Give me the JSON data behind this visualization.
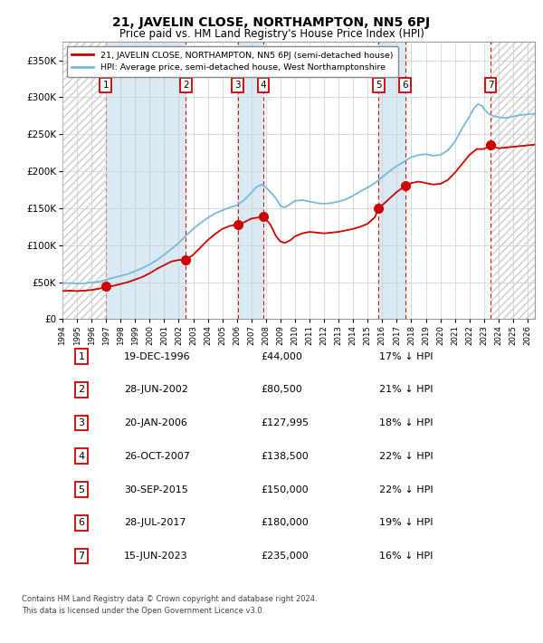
{
  "title": "21, JAVELIN CLOSE, NORTHAMPTON, NN5 6PJ",
  "subtitle": "Price paid vs. HM Land Registry's House Price Index (HPI)",
  "transactions": [
    {
      "num": 1,
      "date_year": 1996.969,
      "price": 44000
    },
    {
      "num": 2,
      "date_year": 2002.49,
      "price": 80500
    },
    {
      "num": 3,
      "date_year": 2006.055,
      "price": 127995
    },
    {
      "num": 4,
      "date_year": 2007.819,
      "price": 138500
    },
    {
      "num": 5,
      "date_year": 2015.747,
      "price": 150000
    },
    {
      "num": 6,
      "date_year": 2017.572,
      "price": 180000
    },
    {
      "num": 7,
      "date_year": 2023.452,
      "price": 235000
    }
  ],
  "table_rows": [
    {
      "num": 1,
      "date_str": "19-DEC-1996",
      "price_str": "£44,000",
      "pct_str": "17% ↓ HPI"
    },
    {
      "num": 2,
      "date_str": "28-JUN-2002",
      "price_str": "£80,500",
      "pct_str": "21% ↓ HPI"
    },
    {
      "num": 3,
      "date_str": "20-JAN-2006",
      "price_str": "£127,995",
      "pct_str": "18% ↓ HPI"
    },
    {
      "num": 4,
      "date_str": "26-OCT-2007",
      "price_str": "£138,500",
      "pct_str": "22% ↓ HPI"
    },
    {
      "num": 5,
      "date_str": "30-SEP-2015",
      "price_str": "£150,000",
      "pct_str": "22% ↓ HPI"
    },
    {
      "num": 6,
      "date_str": "28-JUL-2017",
      "price_str": "£180,000",
      "pct_str": "19% ↓ HPI"
    },
    {
      "num": 7,
      "date_str": "15-JUN-2023",
      "price_str": "£235,000",
      "pct_str": "16% ↓ HPI"
    }
  ],
  "legend_line1": "21, JAVELIN CLOSE, NORTHAMPTON, NN5 6PJ (semi-detached house)",
  "legend_line2": "HPI: Average price, semi-detached house, West Northamptonshire",
  "footer1": "Contains HM Land Registry data © Crown copyright and database right 2024.",
  "footer2": "This data is licensed under the Open Government Licence v3.0.",
  "hpi_color": "#7ab8d9",
  "price_color": "#cc0000",
  "bg_stripe_color": "#daeaf5",
  "grid_color": "#cccccc",
  "box_color": "#cc0000",
  "hatch_color": "#cccccc",
  "ylim": [
    0,
    375000
  ],
  "xlim_min": 1994.0,
  "xlim_max": 2026.5,
  "hpi_points": [
    [
      1994.0,
      48500
    ],
    [
      1994.5,
      48800
    ],
    [
      1995.0,
      48200
    ],
    [
      1995.5,
      48500
    ],
    [
      1996.0,
      49500
    ],
    [
      1996.5,
      50500
    ],
    [
      1997.0,
      53000
    ],
    [
      1997.5,
      56000
    ],
    [
      1998.0,
      58500
    ],
    [
      1998.5,
      61000
    ],
    [
      1999.0,
      65000
    ],
    [
      1999.5,
      69000
    ],
    [
      2000.0,
      74000
    ],
    [
      2000.5,
      80000
    ],
    [
      2001.0,
      87000
    ],
    [
      2001.5,
      95000
    ],
    [
      2002.0,
      103000
    ],
    [
      2002.5,
      113000
    ],
    [
      2003.0,
      122000
    ],
    [
      2003.5,
      130000
    ],
    [
      2004.0,
      137000
    ],
    [
      2004.5,
      143000
    ],
    [
      2005.0,
      147000
    ],
    [
      2005.5,
      151000
    ],
    [
      2006.0,
      154000
    ],
    [
      2006.5,
      161000
    ],
    [
      2007.0,
      171000
    ],
    [
      2007.3,
      178000
    ],
    [
      2007.7,
      182000
    ],
    [
      2008.0,
      178000
    ],
    [
      2008.3,
      172000
    ],
    [
      2008.7,
      163000
    ],
    [
      2009.0,
      153000
    ],
    [
      2009.3,
      151000
    ],
    [
      2009.7,
      156000
    ],
    [
      2010.0,
      160000
    ],
    [
      2010.5,
      161000
    ],
    [
      2011.0,
      159000
    ],
    [
      2011.5,
      157000
    ],
    [
      2012.0,
      156000
    ],
    [
      2012.5,
      157000
    ],
    [
      2013.0,
      159000
    ],
    [
      2013.5,
      162000
    ],
    [
      2014.0,
      167000
    ],
    [
      2014.5,
      173000
    ],
    [
      2015.0,
      178000
    ],
    [
      2015.5,
      184000
    ],
    [
      2016.0,
      192000
    ],
    [
      2016.5,
      200000
    ],
    [
      2017.0,
      207000
    ],
    [
      2017.5,
      213000
    ],
    [
      2018.0,
      219000
    ],
    [
      2018.5,
      222000
    ],
    [
      2019.0,
      223000
    ],
    [
      2019.5,
      221000
    ],
    [
      2020.0,
      222000
    ],
    [
      2020.5,
      228000
    ],
    [
      2021.0,
      240000
    ],
    [
      2021.5,
      258000
    ],
    [
      2022.0,
      274000
    ],
    [
      2022.3,
      285000
    ],
    [
      2022.6,
      291000
    ],
    [
      2022.9,
      288000
    ],
    [
      2023.0,
      284000
    ],
    [
      2023.3,
      278000
    ],
    [
      2023.6,
      275000
    ],
    [
      2024.0,
      273000
    ],
    [
      2024.5,
      272000
    ],
    [
      2025.0,
      274000
    ],
    [
      2025.5,
      276000
    ],
    [
      2026.0,
      277000
    ],
    [
      2026.5,
      278000
    ]
  ],
  "price_points": [
    [
      1994.0,
      38000
    ],
    [
      1994.5,
      38500
    ],
    [
      1995.0,
      38000
    ],
    [
      1995.5,
      38500
    ],
    [
      1996.0,
      39500
    ],
    [
      1996.5,
      41000
    ],
    [
      1996.97,
      44000
    ],
    [
      1997.0,
      44000
    ],
    [
      1997.5,
      45000
    ],
    [
      1998.0,
      47500
    ],
    [
      1998.5,
      50000
    ],
    [
      1999.0,
      53500
    ],
    [
      1999.5,
      57000
    ],
    [
      2000.0,
      62000
    ],
    [
      2000.5,
      68000
    ],
    [
      2001.0,
      73000
    ],
    [
      2001.5,
      78000
    ],
    [
      2002.0,
      80000
    ],
    [
      2002.49,
      80500
    ],
    [
      2002.5,
      80500
    ],
    [
      2003.0,
      87000
    ],
    [
      2003.5,
      97000
    ],
    [
      2004.0,
      107000
    ],
    [
      2004.5,
      115000
    ],
    [
      2005.0,
      122000
    ],
    [
      2005.5,
      126000
    ],
    [
      2006.0,
      127995
    ],
    [
      2006.05,
      127995
    ],
    [
      2006.5,
      131000
    ],
    [
      2007.0,
      136000
    ],
    [
      2007.82,
      138500
    ],
    [
      2007.85,
      138500
    ],
    [
      2008.0,
      135000
    ],
    [
      2008.3,
      128000
    ],
    [
      2008.7,
      112000
    ],
    [
      2009.0,
      105000
    ],
    [
      2009.3,
      103000
    ],
    [
      2009.7,
      107000
    ],
    [
      2010.0,
      112000
    ],
    [
      2010.5,
      116000
    ],
    [
      2011.0,
      118000
    ],
    [
      2011.5,
      117000
    ],
    [
      2012.0,
      116000
    ],
    [
      2012.5,
      117000
    ],
    [
      2013.0,
      118000
    ],
    [
      2013.5,
      120000
    ],
    [
      2014.0,
      122000
    ],
    [
      2014.5,
      125000
    ],
    [
      2015.0,
      129000
    ],
    [
      2015.5,
      138000
    ],
    [
      2015.75,
      150000
    ],
    [
      2016.0,
      154000
    ],
    [
      2016.5,
      163000
    ],
    [
      2017.0,
      172000
    ],
    [
      2017.57,
      180000
    ],
    [
      2017.6,
      180000
    ],
    [
      2018.0,
      184000
    ],
    [
      2018.5,
      186000
    ],
    [
      2019.0,
      184000
    ],
    [
      2019.5,
      182000
    ],
    [
      2020.0,
      183000
    ],
    [
      2020.5,
      188000
    ],
    [
      2021.0,
      198000
    ],
    [
      2021.5,
      210000
    ],
    [
      2022.0,
      222000
    ],
    [
      2022.5,
      230000
    ],
    [
      2023.0,
      230000
    ],
    [
      2023.45,
      235000
    ],
    [
      2023.5,
      234000
    ],
    [
      2024.0,
      231000
    ],
    [
      2024.5,
      232000
    ],
    [
      2025.0,
      233000
    ],
    [
      2025.5,
      234000
    ],
    [
      2026.0,
      235000
    ],
    [
      2026.5,
      236000
    ]
  ]
}
